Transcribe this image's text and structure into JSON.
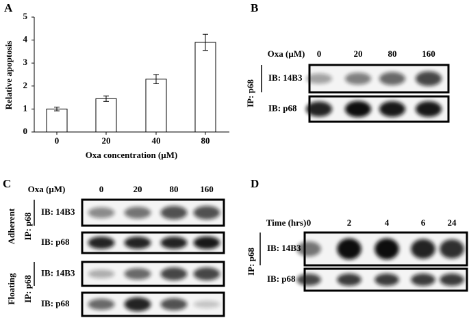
{
  "chart_data": {
    "type": "bar",
    "panel": "A",
    "y_label": "Relative apoptosis",
    "x_label": "Oxa  concentration (μM)",
    "categories": [
      "0",
      "20",
      "40",
      "80"
    ],
    "values": [
      1.0,
      1.45,
      2.3,
      3.9
    ],
    "errors": [
      0.08,
      0.12,
      0.2,
      0.35
    ],
    "color": "#ffffff",
    "ylim": [
      0,
      5
    ],
    "yticks": [
      0,
      1,
      2,
      3,
      4,
      5
    ]
  },
  "blots": [
    {
      "panel": "B",
      "condition": "Oxa (μM)",
      "lanes": [
        "0",
        "20",
        "80",
        "160"
      ],
      "groups": [
        {
          "ip": "IP: p68",
          "rows": [
            "IB: 14B3",
            "IB: p68"
          ]
        }
      ]
    },
    {
      "panel": "C",
      "condition": "Oxa (μM)",
      "lanes": [
        "0",
        "20",
        "80",
        "160"
      ],
      "groups": [
        {
          "name": "Adherent",
          "ip": "IP: p68",
          "rows": [
            "IB: 14B3",
            "IB: p68"
          ]
        },
        {
          "name": "Floating",
          "ip": "IP: p68",
          "rows": [
            "IB: 14B3",
            "IB: p68"
          ]
        }
      ]
    },
    {
      "panel": "D",
      "condition": "Time (hrs)",
      "lanes": [
        "0",
        "2",
        "4",
        "6",
        "24"
      ],
      "groups": [
        {
          "ip": "IP: p68",
          "rows": [
            "IB: 14B3",
            "IB: p68"
          ]
        }
      ]
    }
  ]
}
